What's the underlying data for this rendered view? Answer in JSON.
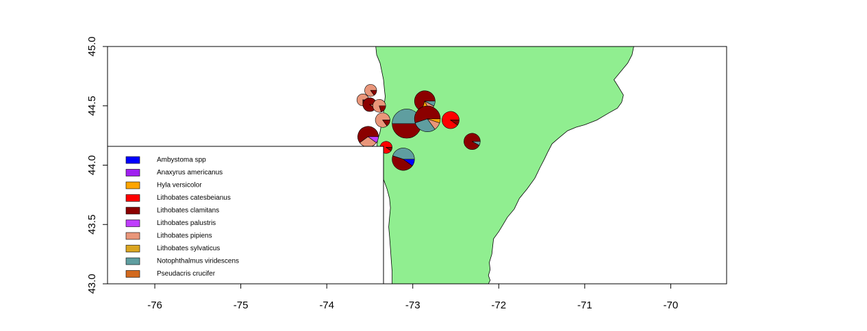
{
  "chart_data": {
    "type": "map-pie",
    "title": "",
    "xlabel": "",
    "ylabel": "",
    "xlim": [
      -76.55,
      -69.35
    ],
    "ylim": [
      43.0,
      45.0
    ],
    "x_ticks": [
      -76,
      -75,
      -74,
      -73,
      -72,
      -71,
      -70
    ],
    "x_tick_labels": [
      "-76",
      "-75",
      "-74",
      "-73",
      "-72",
      "-71",
      "-70"
    ],
    "y_ticks": [
      43.0,
      43.5,
      44.0,
      44.5,
      45.0
    ],
    "y_tick_labels": [
      "43.0",
      "43.5",
      "44.0",
      "44.5",
      "45.0"
    ],
    "land_color": "#90EE90",
    "species": [
      {
        "name": "Ambystoma spp",
        "color": "#0000FF"
      },
      {
        "name": "Anaxyrus americanus",
        "color": "#A020F0"
      },
      {
        "name": "Hyla versicolor",
        "color": "#FFA500"
      },
      {
        "name": "Lithobates catesbeianus",
        "color": "#FF0000"
      },
      {
        "name": "Lithobates clamitans",
        "color": "#8B0000"
      },
      {
        "name": "Lithobates palustris",
        "color": "#BF3EFF"
      },
      {
        "name": "Lithobates pipiens",
        "color": "#E9967A"
      },
      {
        "name": "Lithobates sylvaticus",
        "color": "#DAA520"
      },
      {
        "name": "Notophthalmus viridescens",
        "color": "#5F9EA0"
      },
      {
        "name": "Pseudacris crucifer",
        "color": "#D2691E"
      }
    ],
    "legend_position": "bottom-left",
    "vermont_outline": [
      [
        -73.43,
        45.0
      ],
      [
        -73.42,
        44.93
      ],
      [
        -73.38,
        44.86
      ],
      [
        -73.36,
        44.79
      ],
      [
        -73.34,
        44.72
      ],
      [
        -73.33,
        44.64
      ],
      [
        -73.32,
        44.58
      ],
      [
        -73.33,
        44.52
      ],
      [
        -73.34,
        44.44
      ],
      [
        -73.36,
        44.36
      ],
      [
        -73.38,
        44.28
      ],
      [
        -73.41,
        44.21
      ],
      [
        -73.42,
        44.13
      ],
      [
        -73.4,
        44.05
      ],
      [
        -73.38,
        43.97
      ],
      [
        -73.34,
        43.88
      ],
      [
        -73.3,
        43.8
      ],
      [
        -73.27,
        43.72
      ],
      [
        -73.26,
        43.64
      ],
      [
        -73.27,
        43.56
      ],
      [
        -73.28,
        43.48
      ],
      [
        -73.27,
        43.4
      ],
      [
        -73.26,
        43.3
      ],
      [
        -73.25,
        43.2
      ],
      [
        -73.24,
        43.1
      ],
      [
        -73.24,
        43.0
      ],
      [
        -72.12,
        43.0
      ],
      [
        -72.1,
        43.03
      ],
      [
        -72.12,
        43.07
      ],
      [
        -72.1,
        43.12
      ],
      [
        -72.11,
        43.18
      ],
      [
        -72.08,
        43.25
      ],
      [
        -72.07,
        43.32
      ],
      [
        -72.06,
        43.38
      ],
      [
        -72.0,
        43.44
      ],
      [
        -71.95,
        43.5
      ],
      [
        -71.9,
        43.56
      ],
      [
        -71.82,
        43.63
      ],
      [
        -71.76,
        43.72
      ],
      [
        -71.67,
        43.8
      ],
      [
        -71.58,
        43.89
      ],
      [
        -71.52,
        43.98
      ],
      [
        -71.47,
        44.05
      ],
      [
        -71.43,
        44.11
      ],
      [
        -71.38,
        44.18
      ],
      [
        -71.3,
        44.23
      ],
      [
        -71.2,
        44.29
      ],
      [
        -71.1,
        44.32
      ],
      [
        -71.0,
        44.34
      ],
      [
        -70.86,
        44.38
      ],
      [
        -70.72,
        44.44
      ],
      [
        -70.62,
        44.48
      ],
      [
        -70.57,
        44.53
      ],
      [
        -70.55,
        44.59
      ],
      [
        -70.6,
        44.65
      ],
      [
        -70.66,
        44.72
      ],
      [
        -70.58,
        44.79
      ],
      [
        -70.5,
        44.86
      ],
      [
        -70.45,
        44.93
      ],
      [
        -70.43,
        45.0
      ]
    ],
    "pies": [
      {
        "lon": -73.49,
        "lat": 44.63,
        "r": 0.07,
        "slices": {
          "Lithobates pipiens": 0.85,
          "Lithobates clamitans": 0.15
        }
      },
      {
        "lon": -73.58,
        "lat": 44.55,
        "r": 0.07,
        "slices": {
          "Lithobates pipiens": 0.75,
          "Lithobates clamitans": 0.15,
          "Anaxyrus americanus": 0.1
        }
      },
      {
        "lon": -73.5,
        "lat": 44.51,
        "r": 0.08,
        "slices": {
          "Lithobates clamitans": 0.9,
          "Lithobates pipiens": 0.1
        }
      },
      {
        "lon": -73.39,
        "lat": 44.5,
        "r": 0.075,
        "slices": {
          "Lithobates pipiens": 0.8,
          "Lithobates clamitans": 0.2
        }
      },
      {
        "lon": -72.86,
        "lat": 44.54,
        "r": 0.12,
        "slices": {
          "Lithobates clamitans": 0.7,
          "Hyla versicolor": 0.12,
          "Lithobates pipiens": 0.1,
          "Notophthalmus viridescens": 0.08
        }
      },
      {
        "lon": -73.35,
        "lat": 44.38,
        "r": 0.085,
        "slices": {
          "Lithobates pipiens": 0.85,
          "Lithobates clamitans": 0.15
        }
      },
      {
        "lon": -73.07,
        "lat": 44.35,
        "r": 0.17,
        "slices": {
          "Notophthalmus viridescens": 0.5,
          "Lithobates clamitans": 0.5
        }
      },
      {
        "lon": -72.83,
        "lat": 44.39,
        "r": 0.15,
        "slices": {
          "Lithobates clamitans": 0.55,
          "Notophthalmus viridescens": 0.3,
          "Lithobates pipiens": 0.1,
          "Hyla versicolor": 0.05
        }
      },
      {
        "lon": -72.56,
        "lat": 44.38,
        "r": 0.1,
        "slices": {
          "Lithobates catesbeianus": 0.9,
          "Lithobates clamitans": 0.1
        }
      },
      {
        "lon": -73.52,
        "lat": 44.24,
        "r": 0.12,
        "slices": {
          "Lithobates clamitans": 0.6,
          "Lithobates pipiens": 0.3,
          "Lithobates palustris": 0.1
        }
      },
      {
        "lon": -73.31,
        "lat": 44.15,
        "r": 0.07,
        "slices": {
          "Lithobates catesbeianus": 0.9,
          "Lithobates clamitans": 0.1
        }
      },
      {
        "lon": -72.31,
        "lat": 44.2,
        "r": 0.095,
        "slices": {
          "Lithobates clamitans": 0.92,
          "Notophthalmus viridescens": 0.08
        }
      },
      {
        "lon": -73.11,
        "lat": 44.05,
        "r": 0.13,
        "slices": {
          "Notophthalmus viridescens": 0.45,
          "Lithobates clamitans": 0.45,
          "Ambystoma spp": 0.1
        }
      }
    ]
  }
}
